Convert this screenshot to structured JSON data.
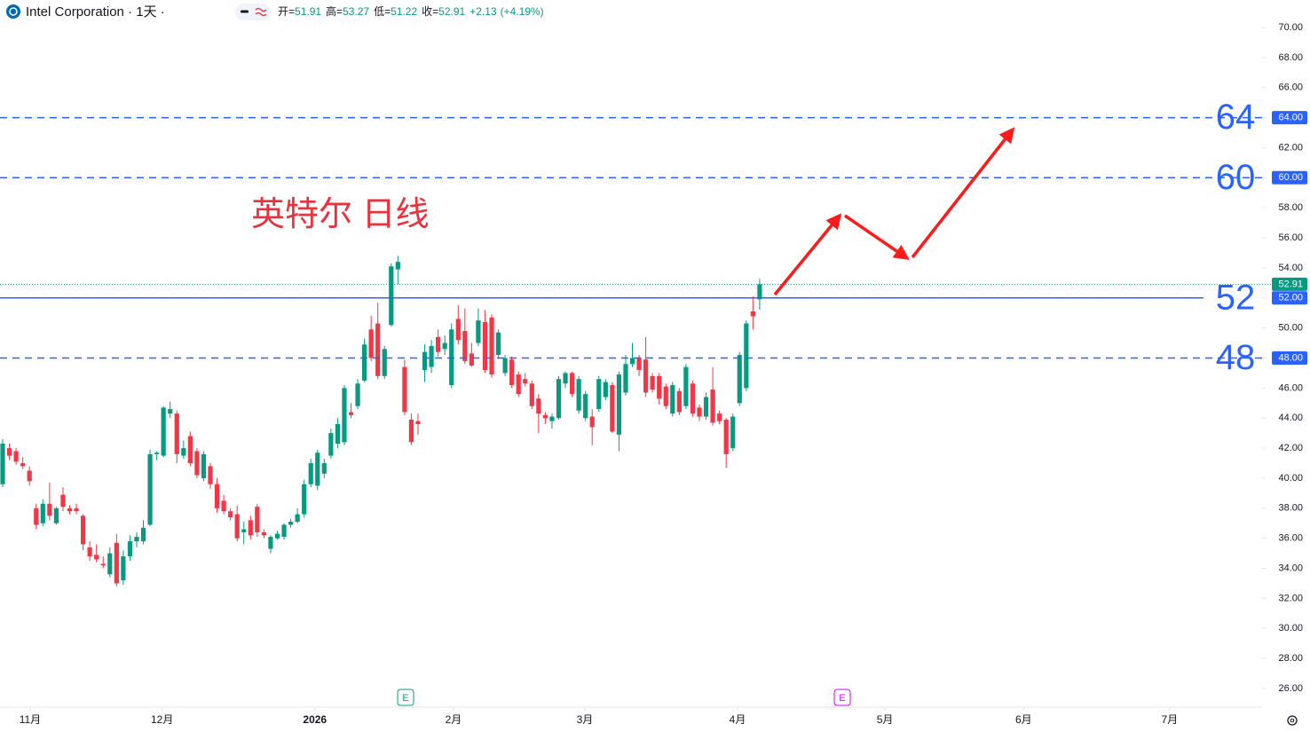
{
  "chart_data": {
    "type": "candlestick",
    "title": "Intel Corporation · 1天 ·",
    "annotation": "英特尔 日线",
    "ohlc_legend": [
      {
        "label": "开=",
        "value": 51.91
      },
      {
        "label": "高=",
        "value": 53.27
      },
      {
        "label": "低=",
        "value": 51.22
      },
      {
        "label": "收=",
        "value": 52.91
      }
    ],
    "change": {
      "value": 2.13,
      "label": "+2.13"
    },
    "change_pct": {
      "value": 4.19,
      "label": "(+4.19%)"
    },
    "up_color": "#089981",
    "down_color": "#f23645",
    "level_color": "#2962ff",
    "ohlc": [
      [
        39.6,
        42.6,
        39.4,
        42.3
      ],
      [
        42.0,
        42.3,
        41.2,
        41.5
      ],
      [
        41.8,
        42.0,
        40.9,
        41.1
      ],
      [
        41.0,
        41.4,
        40.6,
        40.8
      ],
      [
        40.5,
        40.8,
        39.5,
        39.8
      ],
      [
        38.0,
        38.3,
        36.6,
        36.9
      ],
      [
        37.0,
        38.6,
        36.8,
        38.3
      ],
      [
        38.3,
        39.7,
        37.2,
        37.5
      ],
      [
        37.0,
        38.1,
        36.9,
        38.0
      ],
      [
        38.9,
        39.4,
        37.8,
        38.1
      ],
      [
        38.0,
        38.2,
        37.6,
        37.8
      ],
      [
        38.0,
        38.3,
        37.6,
        37.8
      ],
      [
        37.5,
        37.6,
        35.2,
        35.6
      ],
      [
        35.4,
        35.8,
        34.5,
        34.8
      ],
      [
        34.9,
        35.6,
        34.4,
        34.6
      ],
      [
        34.3,
        34.8,
        34.0,
        34.2
      ],
      [
        33.6,
        35.4,
        33.4,
        35.0
      ],
      [
        35.7,
        36.3,
        32.8,
        33.0
      ],
      [
        33.2,
        35.2,
        32.9,
        34.8
      ],
      [
        34.8,
        36.2,
        34.5,
        35.8
      ],
      [
        35.8,
        36.4,
        35.4,
        36.1
      ],
      [
        35.8,
        37.2,
        35.6,
        36.7
      ],
      [
        36.9,
        41.9,
        36.8,
        41.6
      ],
      [
        41.6,
        41.8,
        41.2,
        41.7
      ],
      [
        41.5,
        44.8,
        41.4,
        44.7
      ],
      [
        44.3,
        45.1,
        44.0,
        44.6
      ],
      [
        44.3,
        44.5,
        41.0,
        41.6
      ],
      [
        41.5,
        42.5,
        41.3,
        42.0
      ],
      [
        42.8,
        43.1,
        40.8,
        41.0
      ],
      [
        41.8,
        42.0,
        40.0,
        40.2
      ],
      [
        40.0,
        41.8,
        39.8,
        41.6
      ],
      [
        40.8,
        41.0,
        39.3,
        39.6
      ],
      [
        39.6,
        40.0,
        37.7,
        38.0
      ],
      [
        38.5,
        38.9,
        37.6,
        37.8
      ],
      [
        37.8,
        38.0,
        37.2,
        37.4
      ],
      [
        37.6,
        38.2,
        35.8,
        36.0
      ],
      [
        36.4,
        37.1,
        35.6,
        36.6
      ],
      [
        37.2,
        37.5,
        35.9,
        36.2
      ],
      [
        38.1,
        38.3,
        36.1,
        36.4
      ],
      [
        36.4,
        36.6,
        36.0,
        36.2
      ],
      [
        35.3,
        36.2,
        35.0,
        36.1
      ],
      [
        36.0,
        36.5,
        35.9,
        36.3
      ],
      [
        36.1,
        37.0,
        35.9,
        36.9
      ],
      [
        36.9,
        37.3,
        36.7,
        37.1
      ],
      [
        37.1,
        38.0,
        37.0,
        37.6
      ],
      [
        37.6,
        39.9,
        37.4,
        39.6
      ],
      [
        39.6,
        41.3,
        39.4,
        41.0
      ],
      [
        39.5,
        41.9,
        39.2,
        41.7
      ],
      [
        40.3,
        41.3,
        40.0,
        41.0
      ],
      [
        41.5,
        43.3,
        41.3,
        43.0
      ],
      [
        42.3,
        44.0,
        42.0,
        43.6
      ],
      [
        42.4,
        46.2,
        42.2,
        46.0
      ],
      [
        44.4,
        45.0,
        44.0,
        44.2
      ],
      [
        44.8,
        46.6,
        44.6,
        46.3
      ],
      [
        46.5,
        49.3,
        46.4,
        48.9
      ],
      [
        49.9,
        50.8,
        47.8,
        48.0
      ],
      [
        50.3,
        51.7,
        46.6,
        46.8
      ],
      [
        46.8,
        48.8,
        46.6,
        48.6
      ],
      [
        50.2,
        54.3,
        50.1,
        54.1
      ],
      [
        53.9,
        54.8,
        52.9,
        54.4
      ],
      [
        47.4,
        47.9,
        44.2,
        44.4
      ],
      [
        43.9,
        44.3,
        42.2,
        42.4
      ],
      [
        43.8,
        44.3,
        42.9,
        43.6
      ],
      [
        47.2,
        48.9,
        46.4,
        48.4
      ],
      [
        47.4,
        49.2,
        47.0,
        48.8
      ],
      [
        49.4,
        49.9,
        48.1,
        48.4
      ],
      [
        48.6,
        49.5,
        48.2,
        49.0
      ],
      [
        46.2,
        50.3,
        46.0,
        49.9
      ],
      [
        50.6,
        51.5,
        48.9,
        49.2
      ],
      [
        49.8,
        51.3,
        47.6,
        47.8
      ],
      [
        48.3,
        49.0,
        47.4,
        47.5
      ],
      [
        49.0,
        51.3,
        48.8,
        50.5
      ],
      [
        50.4,
        51.2,
        47.0,
        47.2
      ],
      [
        50.7,
        50.9,
        46.7,
        46.9
      ],
      [
        48.2,
        49.9,
        48.0,
        49.7
      ],
      [
        47.0,
        48.2,
        46.8,
        48.0
      ],
      [
        47.9,
        48.1,
        46.0,
        46.2
      ],
      [
        46.9,
        47.1,
        45.4,
        45.6
      ],
      [
        46.6,
        47.0,
        46.1,
        46.3
      ],
      [
        46.3,
        46.5,
        44.6,
        44.8
      ],
      [
        45.3,
        45.6,
        43.0,
        44.3
      ],
      [
        44.2,
        44.4,
        43.6,
        44.0
      ],
      [
        43.8,
        44.3,
        43.3,
        44.1
      ],
      [
        44.0,
        46.8,
        43.9,
        46.6
      ],
      [
        46.3,
        47.1,
        46.0,
        47.0
      ],
      [
        47.0,
        47.1,
        45.4,
        45.6
      ],
      [
        44.5,
        46.8,
        44.3,
        46.6
      ],
      [
        44.0,
        45.8,
        43.8,
        45.6
      ],
      [
        44.1,
        44.6,
        42.2,
        43.4
      ],
      [
        44.6,
        46.8,
        44.4,
        46.6
      ],
      [
        45.4,
        46.6,
        45.2,
        46.4
      ],
      [
        46.2,
        46.4,
        43.0,
        43.1
      ],
      [
        42.9,
        47.1,
        41.8,
        46.9
      ],
      [
        45.7,
        48.2,
        45.5,
        47.6
      ],
      [
        47.6,
        49.0,
        47.4,
        48.0
      ],
      [
        48.0,
        48.2,
        46.8,
        47.2
      ],
      [
        47.9,
        49.4,
        45.4,
        45.7
      ],
      [
        46.8,
        47.0,
        45.7,
        45.9
      ],
      [
        46.8,
        47.0,
        44.9,
        45.3
      ],
      [
        46.1,
        46.3,
        44.6,
        44.8
      ],
      [
        44.3,
        46.4,
        44.1,
        46.2
      ],
      [
        45.8,
        46.0,
        44.2,
        44.4
      ],
      [
        44.8,
        47.6,
        44.6,
        47.4
      ],
      [
        46.3,
        46.5,
        44.1,
        44.3
      ],
      [
        44.7,
        44.9,
        43.8,
        44.1
      ],
      [
        44.1,
        45.7,
        43.9,
        45.4
      ],
      [
        45.9,
        47.4,
        43.5,
        43.7
      ],
      [
        44.3,
        44.5,
        43.6,
        43.8
      ],
      [
        43.9,
        44.0,
        40.7,
        41.6
      ],
      [
        42.0,
        44.3,
        41.8,
        44.1
      ],
      [
        45.0,
        48.4,
        44.8,
        48.2
      ],
      [
        46.0,
        50.5,
        45.8,
        50.3
      ],
      [
        51.1,
        52.1,
        49.9,
        50.78
      ],
      [
        51.91,
        53.27,
        51.22,
        52.91
      ]
    ],
    "xlim": [
      -0.4,
      188
    ],
    "xticks": [
      {
        "value": 4.1,
        "label": "11月"
      },
      {
        "value": 23.8,
        "label": "12月"
      },
      {
        "value": 46.6,
        "label": "2026"
      },
      {
        "value": 67.3,
        "label": "2月"
      },
      {
        "value": 86.9,
        "label": "3月"
      },
      {
        "value": 109.7,
        "label": "4月"
      },
      {
        "value": 131.7,
        "label": "5月"
      },
      {
        "value": 152.4,
        "label": "6月"
      },
      {
        "value": 174.2,
        "label": "7月"
      }
    ],
    "ylim": [
      24.76,
      71.83
    ],
    "yticks": [
      {
        "value": 26,
        "label": "26.00"
      },
      {
        "value": 28,
        "label": "28.00"
      },
      {
        "value": 30,
        "label": "30.00"
      },
      {
        "value": 32,
        "label": "32.00"
      },
      {
        "value": 34,
        "label": "34.00"
      },
      {
        "value": 36,
        "label": "36.00"
      },
      {
        "value": 38,
        "label": "38.00"
      },
      {
        "value": 40,
        "label": "40.00"
      },
      {
        "value": 42,
        "label": "42.00"
      },
      {
        "value": 44,
        "label": "44.00"
      },
      {
        "value": 46,
        "label": "46.00"
      },
      {
        "value": 48,
        "label": "48.00"
      },
      {
        "value": 50,
        "label": "50.00"
      },
      {
        "value": 52,
        "label": "52.00"
      },
      {
        "value": 54,
        "label": "54.00"
      },
      {
        "value": 56,
        "label": "56.00"
      },
      {
        "value": 58,
        "label": "58.00"
      },
      {
        "value": 60,
        "label": "60.00"
      },
      {
        "value": 62,
        "label": "62.00"
      },
      {
        "value": 64,
        "label": "64.00"
      },
      {
        "value": 66,
        "label": "66.00"
      },
      {
        "value": 68,
        "label": "68.00"
      },
      {
        "value": 70,
        "label": "70.00"
      }
    ],
    "levels": [
      {
        "value": 64,
        "label": "64",
        "axis_label": "64.00",
        "style": "dashed"
      },
      {
        "value": 60,
        "label": "60",
        "axis_label": "60.00",
        "style": "dashed"
      },
      {
        "value": 52,
        "label": "52",
        "axis_label": "52.00",
        "style": "solid"
      },
      {
        "value": 48,
        "label": "48",
        "axis_label": "48.00",
        "style": "dashed"
      }
    ],
    "last_price": {
      "value": 52.91,
      "label": "52.91"
    },
    "earnings_markers": [
      "E",
      "E"
    ]
  }
}
